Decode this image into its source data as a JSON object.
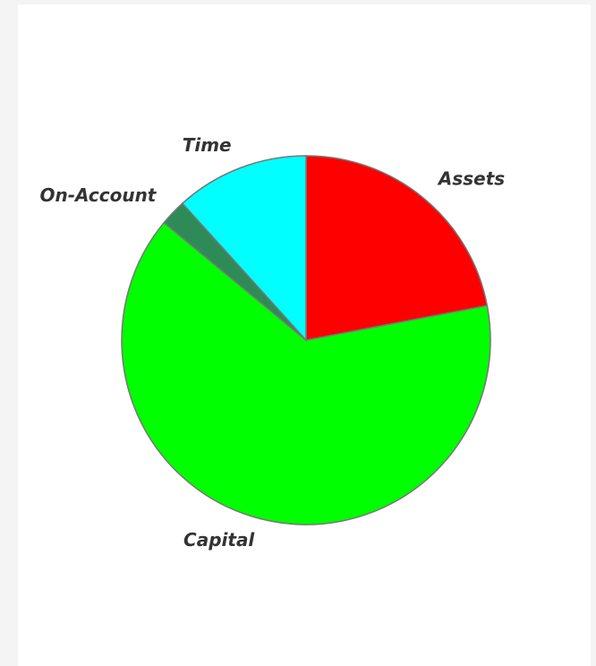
{
  "chart_data": {
    "type": "pie",
    "categories": [
      "Assets",
      "Capital",
      "On-Account",
      "Time"
    ],
    "values": [
      22,
      64,
      2.3,
      11.7
    ],
    "colors": [
      "#ff0000",
      "#00ff00",
      "#2e8b57",
      "#00ffff"
    ]
  }
}
